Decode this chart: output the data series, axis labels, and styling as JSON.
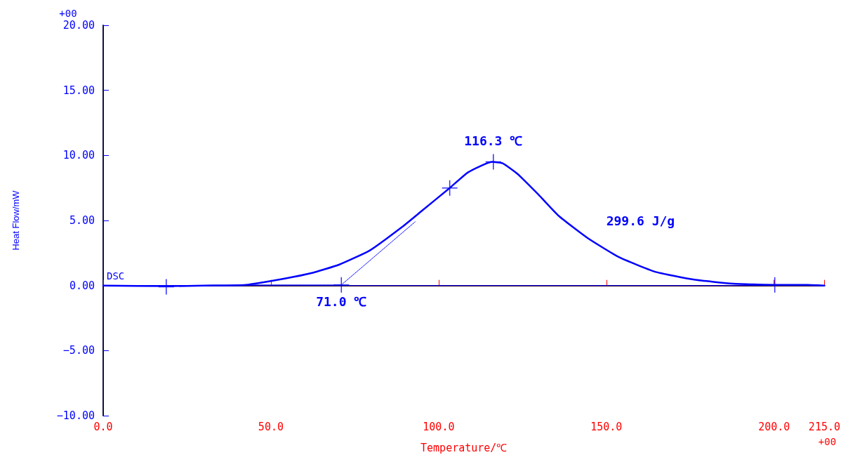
{
  "chart_data": {
    "type": "line",
    "xlabel": "Temperature/℃",
    "ylabel": "Heat Flow/mW",
    "xlim": [
      0,
      215
    ],
    "ylim": [
      -10,
      20
    ],
    "xticks": [
      {
        "value": 0,
        "label": "0.0"
      },
      {
        "value": 50,
        "label": "50.0"
      },
      {
        "value": 100,
        "label": "100.0"
      },
      {
        "value": 150,
        "label": "150.0"
      },
      {
        "value": 200,
        "label": "200.0"
      },
      {
        "value": 215,
        "label": "215.0"
      }
    ],
    "yticks": [
      {
        "value": -10,
        "label": "−10.00"
      },
      {
        "value": -5,
        "label": "−5.00"
      },
      {
        "value": 0,
        "label": "0.00"
      },
      {
        "value": 5,
        "label": "5.00"
      },
      {
        "value": 10,
        "label": "10.00"
      },
      {
        "value": 15,
        "label": "15.00"
      },
      {
        "value": 20,
        "label": "20.00"
      }
    ],
    "grid": false,
    "marker": "none",
    "line_style": "solid",
    "series": [
      {
        "name": "DSC",
        "color": "#0000ff",
        "x": [
          0,
          20,
          30,
          42.5,
          54.4,
          62,
          70.3,
          79.5,
          89.1,
          94.8,
          103.3,
          108.8,
          115.9,
          119,
          123.4,
          129.7,
          135.8,
          144.4,
          153.6,
          164.4,
          176.2,
          187.7,
          200.2,
          210,
          215
        ],
        "values": [
          0,
          -0.05,
          0,
          0.05,
          0.55,
          0.95,
          1.6,
          2.7,
          4.5,
          5.7,
          7.5,
          8.7,
          9.5,
          9.4,
          8.6,
          7.0,
          5.35,
          3.65,
          2.2,
          1.07,
          0.45,
          0.14,
          0.05,
          0.05,
          0
        ]
      },
      {
        "type": "line",
        "color": "#0000ff",
        "x": [
          0,
          215
        ],
        "values": [
          0,
          0
        ]
      },
      {
        "type": "line",
        "color": "#0000ff",
        "line_style": "dotted",
        "x": [
          40,
          71,
          93
        ],
        "values": [
          0.05,
          0.05,
          4.9
        ]
      },
      {
        "type": "scatter",
        "color": "#0000ff",
        "marker": "cross",
        "x": [
          18.8,
          71,
          103.3,
          116.3,
          200.2
        ],
        "values": [
          -0.1,
          0.05,
          7.5,
          9.5,
          0.05
        ]
      }
    ],
    "annotations": [
      "+00",
      "+00",
      {
        "text": "116.3 ℃",
        "x": 116.3,
        "y": 9.5
      },
      {
        "text": "71.0 ℃",
        "x": 71,
        "y": 0.05
      },
      "299.6 J/g"
    ]
  }
}
